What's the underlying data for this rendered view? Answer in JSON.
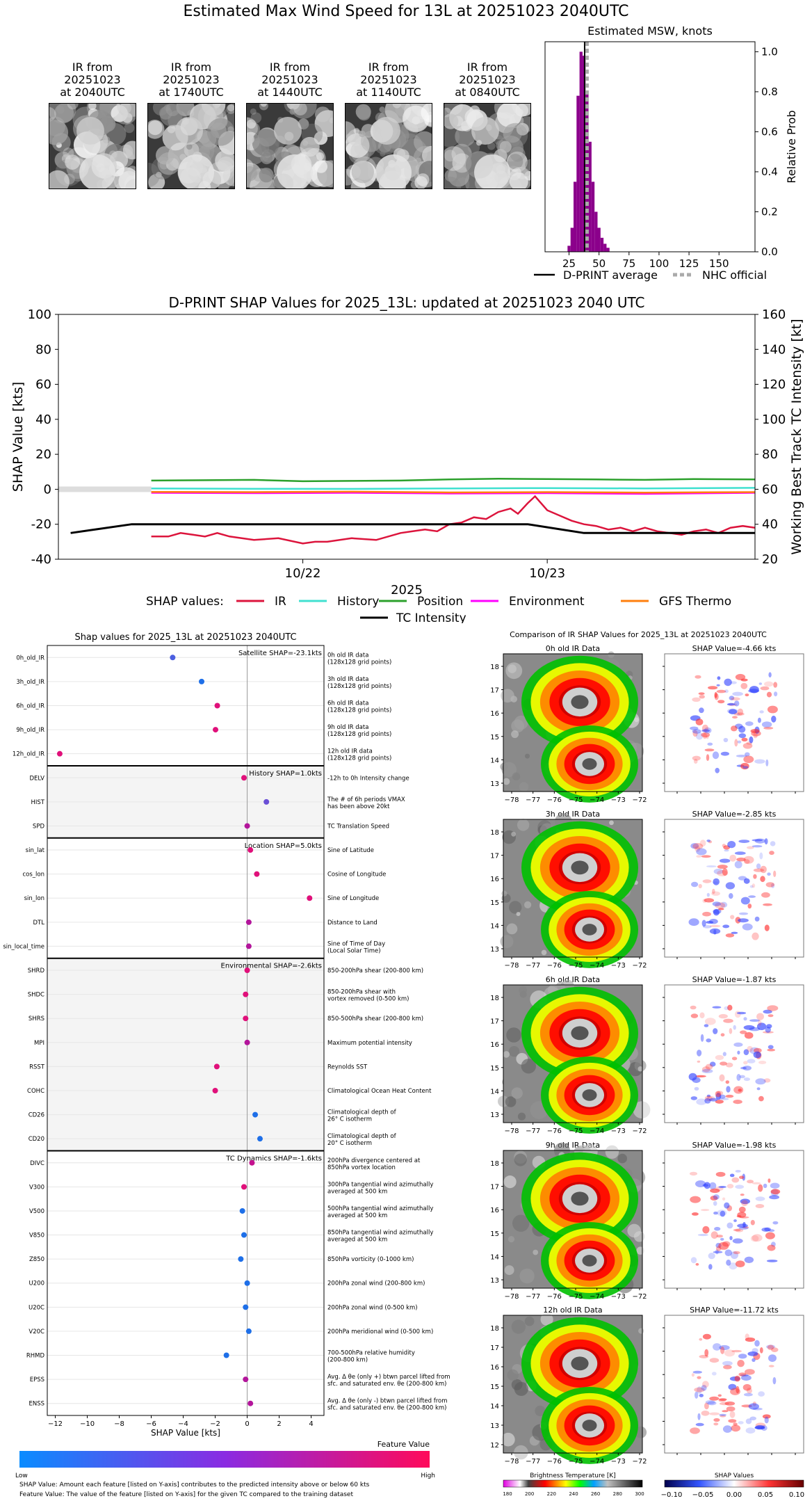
{
  "main_title": "Estimated Max Wind Speed for 13L at 20251023 2040UTC",
  "ir_panels": [
    {
      "line1": "IR from",
      "line2": "20251023",
      "line3": "at 2040UTC"
    },
    {
      "line1": "IR from",
      "line2": "20251023",
      "line3": "at 1740UTC"
    },
    {
      "line1": "IR from",
      "line2": "20251023",
      "line3": "at 1440UTC"
    },
    {
      "line1": "IR from",
      "line2": "20251023",
      "line3": "at 1140UTC"
    },
    {
      "line1": "IR from",
      "line2": "20251023",
      "line3": "at 0840UTC"
    }
  ],
  "chart_data": [
    {
      "type": "bar",
      "title": "Estimated MSW, knots",
      "ylabel": "Relative Prob",
      "xlim": [
        5,
        180
      ],
      "ylim": [
        0,
        1.05
      ],
      "xticks": [
        25,
        50,
        75,
        100,
        125,
        150
      ],
      "yticks": [
        0.0,
        0.2,
        0.4,
        0.6,
        0.8,
        1.0
      ],
      "bin_centers": [
        25,
        27.5,
        30,
        32.5,
        35,
        37.5,
        40,
        42.5,
        45,
        47.5,
        50,
        52.5,
        55,
        57.5
      ],
      "values": [
        0.03,
        0.12,
        0.35,
        0.78,
        1.0,
        0.98,
        0.8,
        0.55,
        0.35,
        0.2,
        0.12,
        0.07,
        0.04,
        0.02
      ],
      "dprint_average": 38,
      "nhc_official": 40,
      "legend": [
        "D-PRINT average",
        "NHC official"
      ],
      "colors": {
        "bars": "#8b008b",
        "average": "#000000",
        "nhc": "#aaaaaa"
      }
    },
    {
      "type": "line",
      "title": "D-PRINT SHAP Values for 2025_13L: updated at 20251023 2040 UTC",
      "ylabel": "SHAP Value [kts]",
      "ylabel_right": "Working Best Track TC Intensity [kt]",
      "xlabel": "2025",
      "x_tick_labels": [
        "10/22",
        "10/23"
      ],
      "x_tick_positions_days": [
        1.0,
        2.0
      ],
      "xlim_days": [
        0.0,
        2.85
      ],
      "ylim": [
        -40,
        100
      ],
      "yticks": [
        -40,
        -20,
        0,
        20,
        40,
        60,
        80,
        100
      ],
      "ylim_right": [
        20,
        160
      ],
      "yticks_right": [
        20,
        40,
        60,
        80,
        100,
        120,
        140,
        160
      ],
      "legend_title": "SHAP values:",
      "series": [
        {
          "name": "IR",
          "color": "#dc143c",
          "x": [
            0.38,
            0.45,
            0.5,
            0.55,
            0.6,
            0.65,
            0.7,
            0.8,
            0.9,
            1.0,
            1.05,
            1.1,
            1.2,
            1.3,
            1.4,
            1.45,
            1.5,
            1.55,
            1.6,
            1.65,
            1.7,
            1.75,
            1.8,
            1.85,
            1.88,
            1.92,
            1.95,
            2.0,
            2.05,
            2.1,
            2.15,
            2.2,
            2.25,
            2.3,
            2.35,
            2.4,
            2.45,
            2.5,
            2.55,
            2.6,
            2.65,
            2.7,
            2.75,
            2.8,
            2.85
          ],
          "y": [
            -27,
            -27,
            -25,
            -26,
            -27,
            -25,
            -27,
            -29,
            -28,
            -31,
            -30,
            -30,
            -28,
            -29,
            -25,
            -24,
            -23,
            -24,
            -20,
            -19,
            -16,
            -17,
            -13,
            -11,
            -14,
            -8,
            -4,
            -12,
            -15,
            -18,
            -20,
            -21,
            -23,
            -22,
            -24,
            -22,
            -24,
            -25,
            -26,
            -24,
            -23,
            -25,
            -22,
            -21,
            -22
          ]
        },
        {
          "name": "History",
          "color": "#40e0d0",
          "x": [
            0.38,
            0.8,
            1.2,
            1.6,
            2.0,
            2.4,
            2.85
          ],
          "y": [
            0.5,
            0.3,
            0.2,
            0.5,
            0.7,
            0.5,
            0.8
          ]
        },
        {
          "name": "Position",
          "color": "#2ca02c",
          "x": [
            0.38,
            0.6,
            0.8,
            1.0,
            1.2,
            1.4,
            1.6,
            1.8,
            2.0,
            2.2,
            2.4,
            2.6,
            2.85
          ],
          "y": [
            5,
            5.2,
            5.4,
            4.6,
            4.8,
            5.0,
            5.6,
            6.0,
            5.8,
            5.6,
            5.4,
            5.8,
            5.6
          ]
        },
        {
          "name": "Environment",
          "color": "#ff00ff",
          "x": [
            0.38,
            0.8,
            1.2,
            1.6,
            2.0,
            2.4,
            2.85
          ],
          "y": [
            -2,
            -2.2,
            -2,
            -2.4,
            -2.2,
            -2.6,
            -2
          ]
        },
        {
          "name": "GFS Thermo",
          "color": "#ff7f0e",
          "x": [
            0.38,
            0.8,
            1.2,
            1.6,
            2.0,
            2.4,
            2.85
          ],
          "y": [
            -1.5,
            -1.6,
            -1.4,
            -1.8,
            -1.6,
            -1.9,
            -1.6
          ]
        }
      ],
      "tc_intensity": {
        "name": "TC Intensity",
        "color": "#000000",
        "x_days": [
          0.05,
          0.3,
          1.1,
          1.75,
          1.92,
          2.15,
          2.85
        ],
        "kt": [
          35,
          40,
          40,
          40,
          40,
          35,
          35
        ]
      }
    },
    {
      "type": "scatter",
      "title": "Shap values for 2025_13L at 20251023 2040UTC",
      "xlabel": "SHAP Value [kts]",
      "xlim": [
        -12.5,
        4.8
      ],
      "xticks": [
        -12,
        -10,
        -8,
        -6,
        -4,
        -2,
        0,
        2,
        4
      ],
      "features": [
        {
          "name": "0h_old_IR",
          "shap": -4.66,
          "color": "#4b5fe0",
          "desc1": "0h old IR data",
          "desc2": "(128x128 grid points)"
        },
        {
          "name": "3h_old_IR",
          "shap": -2.85,
          "color": "#1e6fe8",
          "desc1": "3h old IR data",
          "desc2": "(128x128 grid points)"
        },
        {
          "name": "6h_old_IR",
          "shap": -1.87,
          "color": "#e0107a",
          "desc1": "6h old IR data",
          "desc2": "(128x128 grid points)"
        },
        {
          "name": "9h_old_IR",
          "shap": -1.98,
          "color": "#e0107a",
          "desc1": "9h old IR data",
          "desc2": "(128x128 grid points)"
        },
        {
          "name": "12h_old_IR",
          "shap": -11.72,
          "color": "#e0107a",
          "desc1": "12h old IR data",
          "desc2": "(128x128 grid points)"
        },
        {
          "name": "DELV",
          "shap": -0.2,
          "color": "#e0107a",
          "desc1": "-12h to 0h Intensity change",
          "desc2": ""
        },
        {
          "name": "HIST",
          "shap": 1.2,
          "color": "#6a4fd6",
          "desc1": "The # of 6h periods VMAX",
          "desc2": "has been above 20kt"
        },
        {
          "name": "SPD",
          "shap": 0.0,
          "color": "#b3159b",
          "desc1": "TC Translation Speed",
          "desc2": ""
        },
        {
          "name": "sin_lat",
          "shap": 0.2,
          "color": "#e0107a",
          "desc1": "Sine of Latitude",
          "desc2": ""
        },
        {
          "name": "cos_lon",
          "shap": 0.6,
          "color": "#e0107a",
          "desc1": "Cosine of Longitude",
          "desc2": ""
        },
        {
          "name": "sin_lon",
          "shap": 3.9,
          "color": "#e0107a",
          "desc1": "Sine of Longitude",
          "desc2": ""
        },
        {
          "name": "DTL",
          "shap": 0.1,
          "color": "#b3159b",
          "desc1": "Distance to Land",
          "desc2": ""
        },
        {
          "name": "sin_local_time",
          "shap": 0.1,
          "color": "#b3159b",
          "desc1": "Sine of Time of Day",
          "desc2": "(Local Solar Time)"
        },
        {
          "name": "SHRD",
          "shap": 0.0,
          "color": "#e0107a",
          "desc1": "850-200hPa shear (200-800 km)",
          "desc2": ""
        },
        {
          "name": "SHDC",
          "shap": -0.1,
          "color": "#e0107a",
          "desc1": "850-200hPa shear with",
          "desc2": "vortex removed (0-500 km)"
        },
        {
          "name": "SHRS",
          "shap": -0.1,
          "color": "#e0107a",
          "desc1": "850-500hPa shear (200-800 km)",
          "desc2": ""
        },
        {
          "name": "MPI",
          "shap": 0.0,
          "color": "#b3159b",
          "desc1": "Maximum potential intensity",
          "desc2": ""
        },
        {
          "name": "RSST",
          "shap": -1.9,
          "color": "#e0107a",
          "desc1": "Reynolds SST",
          "desc2": ""
        },
        {
          "name": "COHC",
          "shap": -2.0,
          "color": "#e0107a",
          "desc1": "Climatological Ocean Heat Content",
          "desc2": ""
        },
        {
          "name": "CD26",
          "shap": 0.5,
          "color": "#1e6fe8",
          "desc1": "Climatological depth of",
          "desc2": "26° C isotherm"
        },
        {
          "name": "CD20",
          "shap": 0.8,
          "color": "#1e6fe8",
          "desc1": "Climatological depth of",
          "desc2": "20° C isotherm"
        },
        {
          "name": "DIVC",
          "shap": 0.3,
          "color": "#c4128f",
          "desc1": "200hPa divergence centered at",
          "desc2": "850hPa vortex location"
        },
        {
          "name": "V300",
          "shap": -0.2,
          "color": "#e0107a",
          "desc1": "300hPa tangential wind azimuthally",
          "desc2": "averaged at 500 km"
        },
        {
          "name": "V500",
          "shap": -0.3,
          "color": "#1e6fe8",
          "desc1": "500hPa tangential wind azimuthally",
          "desc2": "averaged at 500 km"
        },
        {
          "name": "V850",
          "shap": -0.2,
          "color": "#1e6fe8",
          "desc1": "850hPa tangential wind azimuthally",
          "desc2": "averaged at 500 km"
        },
        {
          "name": "Z850",
          "shap": -0.4,
          "color": "#1e6fe8",
          "desc1": "850hPa vorticity (0-1000 km)",
          "desc2": ""
        },
        {
          "name": "U200",
          "shap": 0.0,
          "color": "#1e6fe8",
          "desc1": "200hPa zonal wind (200-800 km)",
          "desc2": ""
        },
        {
          "name": "U20C",
          "shap": -0.1,
          "color": "#1e6fe8",
          "desc1": "200hPa zonal wind (0-500 km)",
          "desc2": ""
        },
        {
          "name": "V20C",
          "shap": 0.1,
          "color": "#1e6fe8",
          "desc1": "200hPa meridional wind (0-500 km)",
          "desc2": ""
        },
        {
          "name": "RHMD",
          "shap": -1.3,
          "color": "#1e6fe8",
          "desc1": "700-500hPa relative humidity",
          "desc2": "(200-800 km)"
        },
        {
          "name": "EPSS",
          "shap": -0.1,
          "color": "#b3159b",
          "desc1": "Avg. Δ θe (only +) btwn parcel lifted from",
          "desc2": "sfc. and saturated env. θe (200-800 km)"
        },
        {
          "name": "ENSS",
          "shap": 0.2,
          "color": "#b3159b",
          "desc1": "Avg. Δ θe (only -) btwn parcel lifted from",
          "desc2": "sfc. and saturated env. θe (200-800 km)"
        }
      ],
      "groups": [
        {
          "label": "Satellite SHAP=-23.1kts",
          "start": 0,
          "end": 4,
          "shaded": false
        },
        {
          "label": "History SHAP=1.0kts",
          "start": 5,
          "end": 7,
          "shaded": true
        },
        {
          "label": "Location SHAP=5.0kts",
          "start": 8,
          "end": 12,
          "shaded": false
        },
        {
          "label": "Environmental SHAP=-2.6kts",
          "start": 13,
          "end": 20,
          "shaded": true
        },
        {
          "label": "TC Dynamics SHAP=-1.6kts",
          "start": 21,
          "end": 31,
          "shaded": false
        }
      ]
    }
  ],
  "colorbar": {
    "title": "Feature Value",
    "low": "Low",
    "high": "High"
  },
  "footer": {
    "line1": "SHAP Value: Amount each feature [listed on Y-axis] contributes to the predicted intensity above or below 60 kts",
    "line2": "Feature Value: The value of the feature [listed on Y-axis] for the given TC compared to the training dataset"
  },
  "comparison": {
    "title": "Comparison of IR SHAP Values for 2025_13L at 20251023 2040UTC",
    "rows": [
      {
        "ir_title": "0h old IR Data",
        "shap_title": "SHAP Value=-4.66 kts"
      },
      {
        "ir_title": "3h old IR Data",
        "shap_title": "SHAP Value=-2.85 kts"
      },
      {
        "ir_title": "6h old IR Data",
        "shap_title": "SHAP Value=-1.87 kts"
      },
      {
        "ir_title": "9h old IR Data",
        "shap_title": "SHAP Value=-1.98 kts"
      },
      {
        "ir_title": "12h old IR Data",
        "shap_title": "SHAP Value=-11.72 kts"
      }
    ],
    "lat_ticks": [
      "18",
      "17",
      "16",
      "15",
      "14",
      "13"
    ],
    "lat_ticks_last": [
      "18",
      "17",
      "16",
      "15",
      "14",
      "13",
      "12"
    ],
    "lon_ticks": [
      "−78",
      "−77",
      "−76",
      "−75",
      "−74",
      "−73",
      "−72"
    ],
    "bt_label": "Brightness Temperature [K]",
    "bt_ticks": [
      "180",
      "200",
      "220",
      "240",
      "260",
      "280",
      "300"
    ],
    "sv_label": "SHAP Values",
    "sv_ticks": [
      "−0.10",
      "−0.05",
      "0.00",
      "0.05",
      "0.10"
    ]
  }
}
